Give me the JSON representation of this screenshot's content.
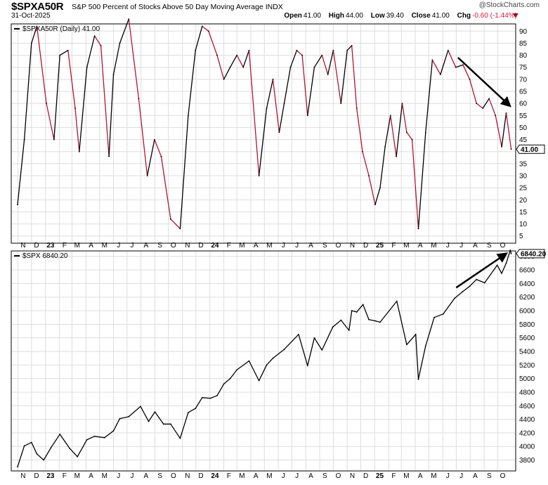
{
  "header": {
    "symbol": "$SPXA50R",
    "description": "S&P 500 Percent of Stocks Above 50 Day Moving Average INDX",
    "date": "31-Oct-2025",
    "brand": "@StockCharts.com",
    "open_label": "Open",
    "open": "41.00",
    "high_label": "High",
    "high": "44.00",
    "low_label": "Low",
    "low": "39.40",
    "close_label": "Close",
    "close": "41.00",
    "chg_label": "Chg",
    "chg": "-0.60 (-1.44%)"
  },
  "colors": {
    "up": "#000000",
    "down": "#b5123a",
    "grid": "#dddddd",
    "frame": "#000000"
  },
  "chart_data": [
    {
      "type": "line",
      "panel": "top",
      "legend": "$SPXA50R (Daily) 41.00",
      "last_value_label": "41.00",
      "y_ticks": [
        5,
        10,
        15,
        20,
        25,
        30,
        35,
        40,
        45,
        50,
        55,
        60,
        65,
        70,
        75,
        80,
        85,
        90
      ],
      "ylim": [
        2,
        93
      ],
      "x_tick_labels": [
        "N",
        "D",
        "23",
        "F",
        "M",
        "A",
        "M",
        "J",
        "J",
        "A",
        "S",
        "O",
        "N",
        "D",
        "24",
        "F",
        "M",
        "A",
        "M",
        "J",
        "J",
        "A",
        "S",
        "O",
        "N",
        "D",
        "25",
        "F",
        "M",
        "A",
        "M",
        "J",
        "J",
        "A",
        "S",
        "O"
      ],
      "x_tick_bold": [
        "23",
        "24",
        "25"
      ],
      "series": [
        {
          "x": [
            "2022-10-31",
            "2022-11-15",
            "2022-12-01",
            "2022-12-13",
            "2023-01-03",
            "2023-01-20",
            "2023-02-02",
            "2023-02-20",
            "2023-03-08",
            "2023-03-17",
            "2023-04-03",
            "2023-04-20",
            "2023-05-04",
            "2023-05-22",
            "2023-06-01",
            "2023-06-15",
            "2023-07-05",
            "2023-07-27",
            "2023-08-15",
            "2023-08-31",
            "2023-09-15",
            "2023-10-06",
            "2023-10-27",
            "2023-11-14",
            "2023-11-30",
            "2023-12-15",
            "2023-12-29",
            "2024-01-17",
            "2024-02-01",
            "2024-02-15",
            "2024-03-01",
            "2024-03-15",
            "2024-03-28",
            "2024-04-19",
            "2024-05-06",
            "2024-05-20",
            "2024-06-03",
            "2024-06-14",
            "2024-06-28",
            "2024-07-12",
            "2024-07-24",
            "2024-08-05",
            "2024-08-20",
            "2024-09-06",
            "2024-09-19",
            "2024-10-01",
            "2024-10-18",
            "2024-11-01",
            "2024-11-11",
            "2024-11-22",
            "2024-12-05",
            "2024-12-19",
            "2025-01-02",
            "2025-01-13",
            "2025-01-24",
            "2025-02-05",
            "2025-02-18",
            "2025-03-03",
            "2025-03-13",
            "2025-03-25",
            "2025-04-08",
            "2025-04-24",
            "2025-05-09",
            "2025-05-27",
            "2025-06-13",
            "2025-06-30",
            "2025-07-16",
            "2025-07-31",
            "2025-08-15",
            "2025-08-29",
            "2025-09-12",
            "2025-09-26",
            "2025-10-10",
            "2025-10-20",
            "2025-10-31"
          ],
          "values": [
            18,
            45,
            85,
            92,
            60,
            45,
            80,
            82,
            58,
            40,
            75,
            88,
            84,
            38,
            72,
            85,
            95,
            62,
            30,
            45,
            38,
            12,
            8,
            55,
            82,
            92,
            90,
            80,
            70,
            75,
            80,
            75,
            82,
            30,
            58,
            70,
            48,
            60,
            75,
            82,
            80,
            55,
            75,
            80,
            72,
            82,
            60,
            82,
            84,
            58,
            40,
            30,
            18,
            25,
            42,
            55,
            38,
            60,
            48,
            45,
            8,
            48,
            78,
            72,
            82,
            75,
            76,
            70,
            60,
            58,
            62,
            55,
            42,
            56,
            41
          ]
        }
      ],
      "annotation": {
        "type": "arrow",
        "direction": "down",
        "from": [
          "2025-07-05",
          79
        ],
        "to": [
          "2025-10-28",
          59
        ]
      }
    },
    {
      "type": "line",
      "panel": "bottom",
      "legend": "$SPX 6840.20",
      "last_value_label": "6840.20",
      "y_ticks": [
        3800,
        4000,
        4200,
        4400,
        4600,
        4800,
        5000,
        5200,
        5400,
        5600,
        5800,
        6000,
        6200,
        6400,
        6600,
        6800
      ],
      "ylim": [
        3640,
        6880
      ],
      "x_tick_labels": [
        "N",
        "D",
        "23",
        "F",
        "M",
        "A",
        "M",
        "J",
        "J",
        "A",
        "S",
        "O",
        "N",
        "D",
        "24",
        "F",
        "M",
        "A",
        "M",
        "J",
        "J",
        "A",
        "S",
        "O",
        "N",
        "D",
        "25",
        "F",
        "M",
        "A",
        "M",
        "J",
        "J",
        "A",
        "S",
        "O"
      ],
      "x_tick_bold": [
        "23",
        "24",
        "25"
      ],
      "series": [
        {
          "x": [
            "2022-10-31",
            "2022-11-15",
            "2022-12-01",
            "2022-12-13",
            "2022-12-28",
            "2023-01-13",
            "2023-02-02",
            "2023-02-24",
            "2023-03-13",
            "2023-04-03",
            "2023-04-20",
            "2023-05-12",
            "2023-06-01",
            "2023-06-15",
            "2023-07-05",
            "2023-07-31",
            "2023-08-18",
            "2023-09-01",
            "2023-09-20",
            "2023-10-06",
            "2023-10-27",
            "2023-11-14",
            "2023-11-30",
            "2023-12-15",
            "2024-01-02",
            "2024-01-17",
            "2024-02-01",
            "2024-02-15",
            "2024-03-01",
            "2024-03-28",
            "2024-04-19",
            "2024-05-06",
            "2024-05-20",
            "2024-06-14",
            "2024-07-16",
            "2024-08-05",
            "2024-08-20",
            "2024-09-06",
            "2024-09-30",
            "2024-10-18",
            "2024-11-05",
            "2024-11-11",
            "2024-11-22",
            "2024-12-06",
            "2024-12-19",
            "2025-01-02",
            "2025-01-13",
            "2025-02-19",
            "2025-03-13",
            "2025-04-02",
            "2025-04-08",
            "2025-04-24",
            "2025-05-13",
            "2025-06-02",
            "2025-06-27",
            "2025-07-15",
            "2025-07-31",
            "2025-08-15",
            "2025-09-02",
            "2025-09-30",
            "2025-10-10",
            "2025-10-20",
            "2025-10-29",
            "2025-10-31"
          ],
          "values": [
            3700,
            4010,
            4060,
            3890,
            3800,
            3980,
            4180,
            3970,
            3850,
            4100,
            4150,
            4130,
            4230,
            4410,
            4440,
            4590,
            4370,
            4510,
            4330,
            4330,
            4120,
            4500,
            4560,
            4720,
            4710,
            4750,
            4920,
            5000,
            5130,
            5260,
            4970,
            5200,
            5300,
            5430,
            5650,
            5190,
            5600,
            5420,
            5760,
            5860,
            5710,
            6000,
            5980,
            6090,
            5870,
            5850,
            5830,
            6140,
            5500,
            5650,
            4990,
            5480,
            5900,
            5950,
            6180,
            6280,
            6360,
            6460,
            6410,
            6670,
            6550,
            6700,
            6890,
            6840
          ]
        }
      ],
      "annotation": {
        "type": "arrow",
        "direction": "up",
        "from": [
          "2025-07-01",
          6340
        ],
        "to": [
          "2025-10-20",
          6840
        ]
      }
    }
  ]
}
